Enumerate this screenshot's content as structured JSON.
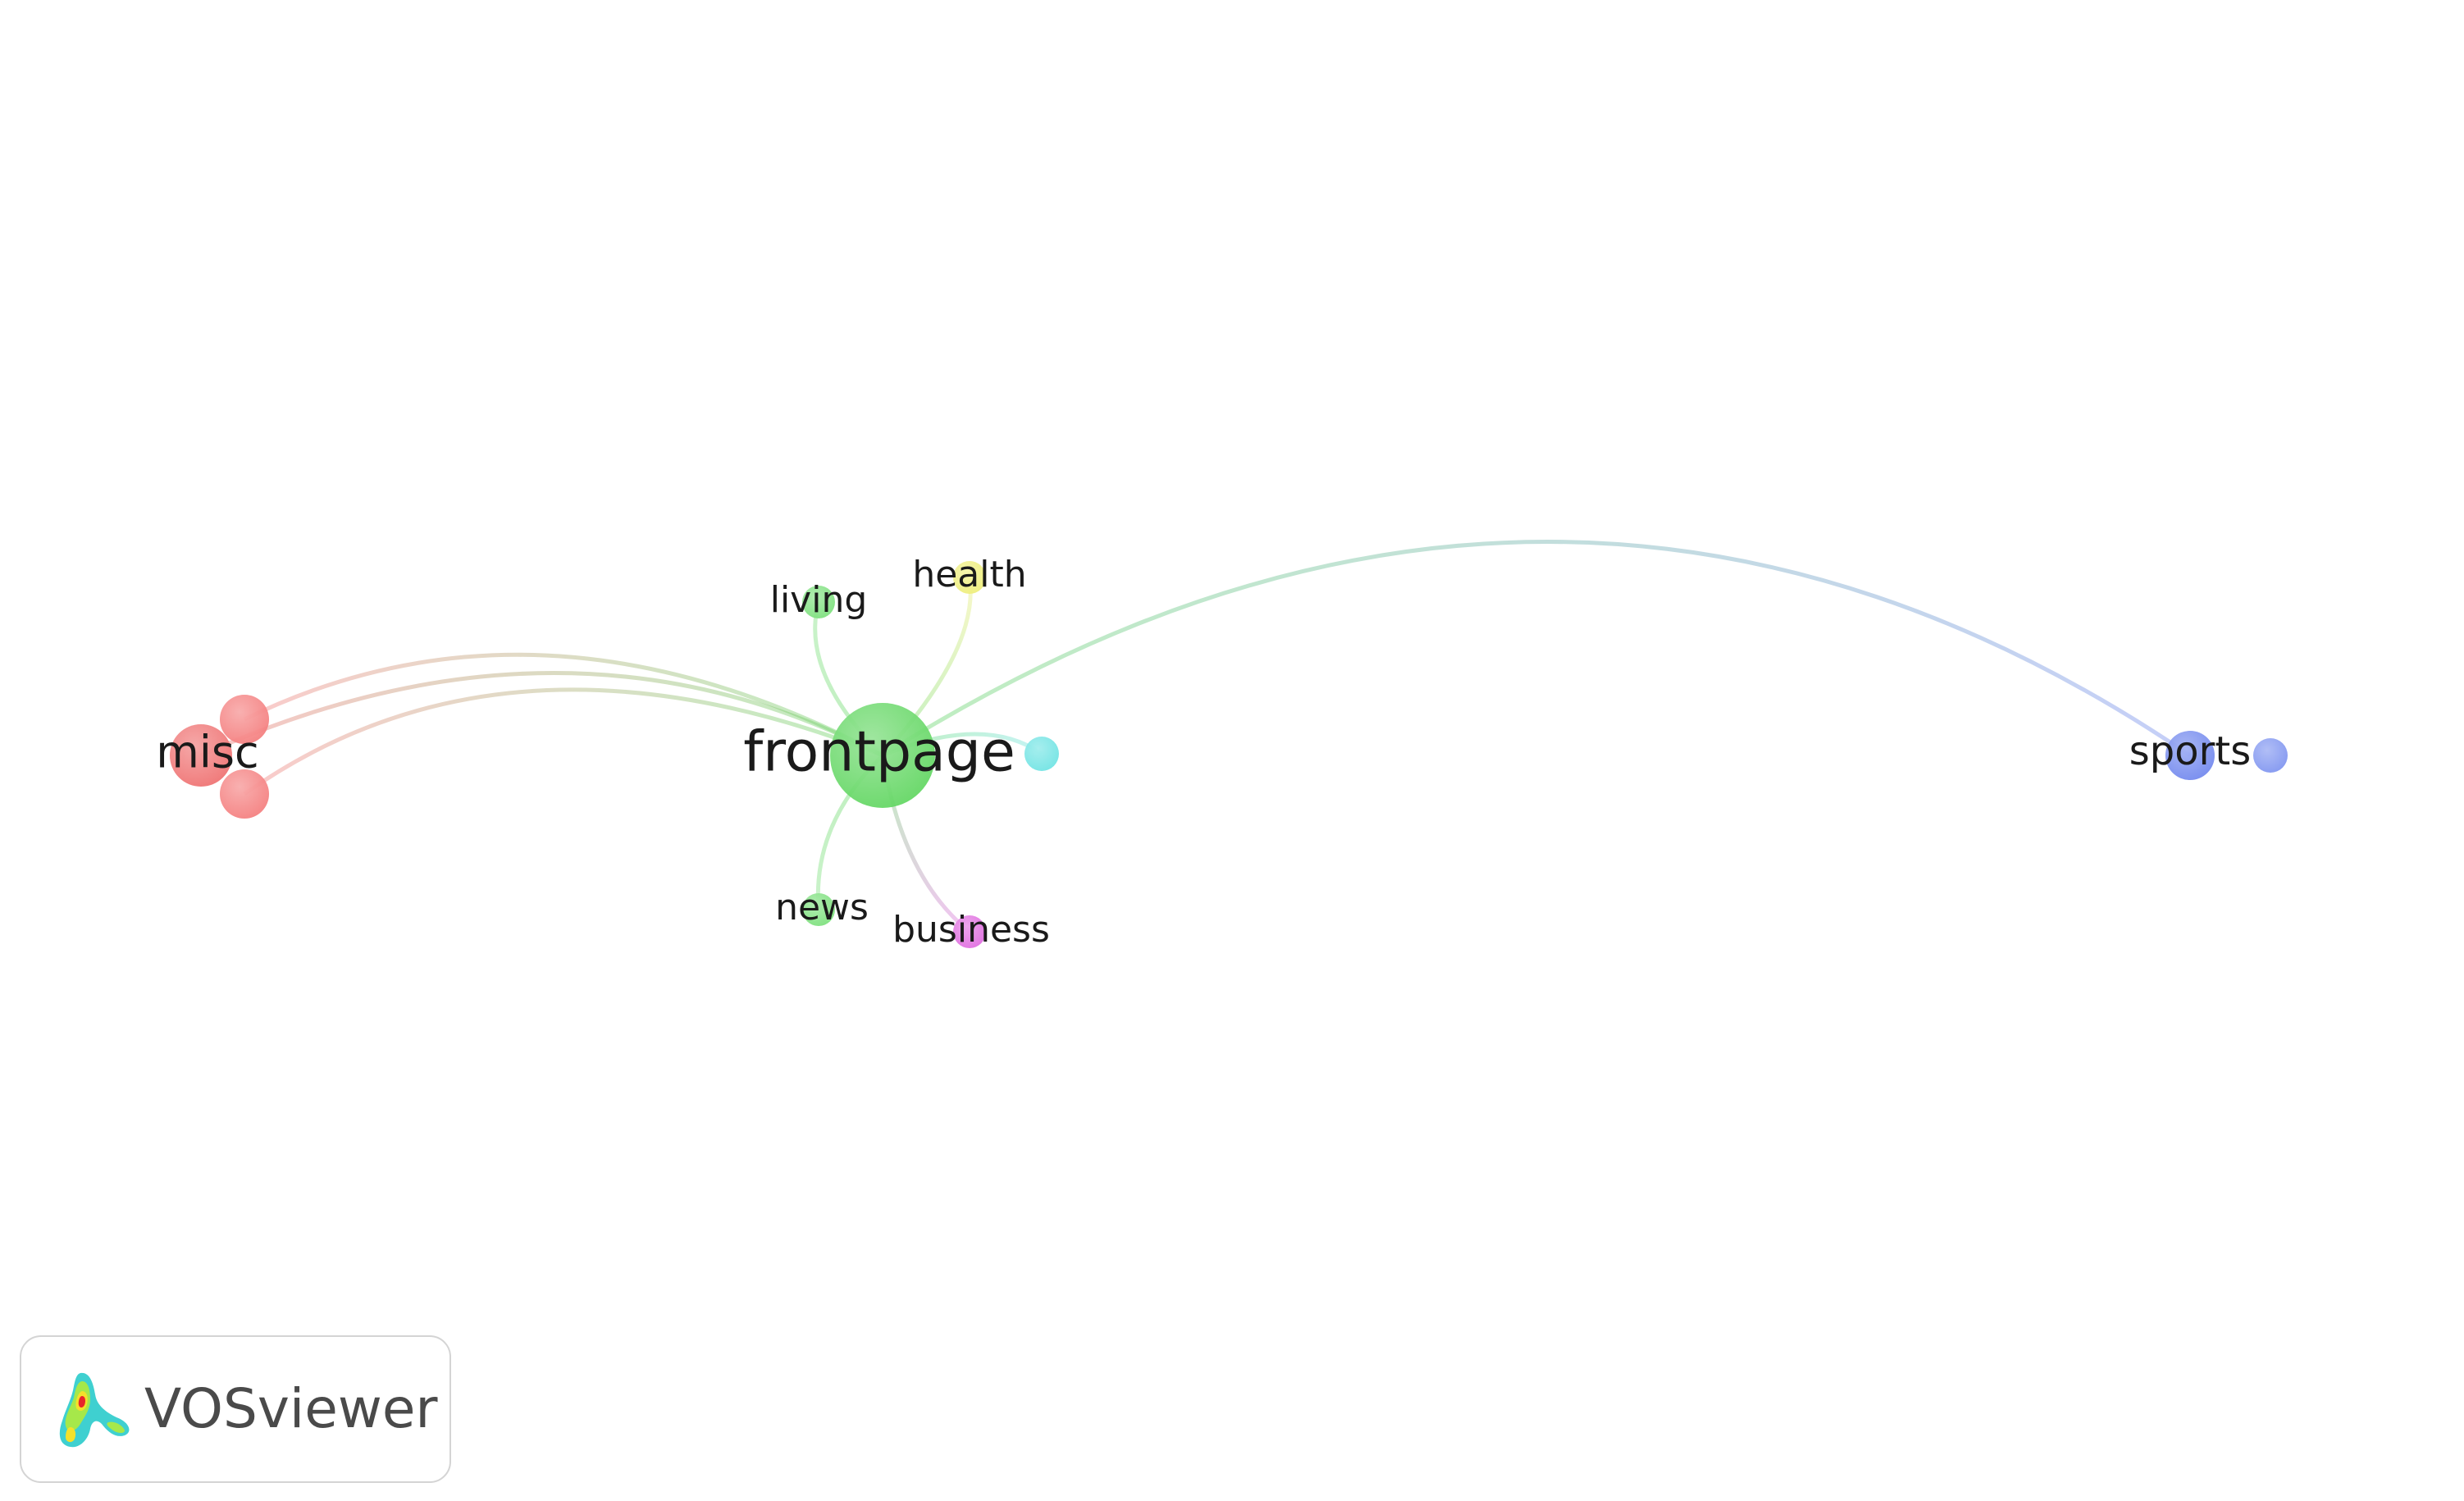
{
  "nodes": [
    {
      "id": "frontpage",
      "label": "frontpage",
      "color": "#5fd65f"
    },
    {
      "id": "misc",
      "label": "misc",
      "color": "#ef6f6f"
    },
    {
      "id": "misc2",
      "label": "",
      "color": "#f47c7c"
    },
    {
      "id": "misc3",
      "label": "",
      "color": "#f47c7c"
    },
    {
      "id": "living",
      "label": "living",
      "color": "#7be07b"
    },
    {
      "id": "health",
      "label": "health",
      "color": "#eeee77"
    },
    {
      "id": "news",
      "label": "news",
      "color": "#7be07b"
    },
    {
      "id": "business",
      "label": "business",
      "color": "#e06ae0"
    },
    {
      "id": "cyan",
      "label": "",
      "color": "#6de3e3"
    },
    {
      "id": "sports",
      "label": "sports",
      "color": "#6f86ee"
    },
    {
      "id": "sports2",
      "label": "",
      "color": "#7d93f0"
    }
  ],
  "edges": [
    {
      "from": "frontpage",
      "to": "misc"
    },
    {
      "from": "frontpage",
      "to": "misc2"
    },
    {
      "from": "frontpage",
      "to": "misc3"
    },
    {
      "from": "frontpage",
      "to": "living"
    },
    {
      "from": "frontpage",
      "to": "health"
    },
    {
      "from": "frontpage",
      "to": "news"
    },
    {
      "from": "frontpage",
      "to": "business"
    },
    {
      "from": "frontpage",
      "to": "cyan"
    },
    {
      "from": "frontpage",
      "to": "sports"
    }
  ],
  "logo": {
    "text": "VOSviewer",
    "icon": "vosviewer-logo-icon"
  }
}
